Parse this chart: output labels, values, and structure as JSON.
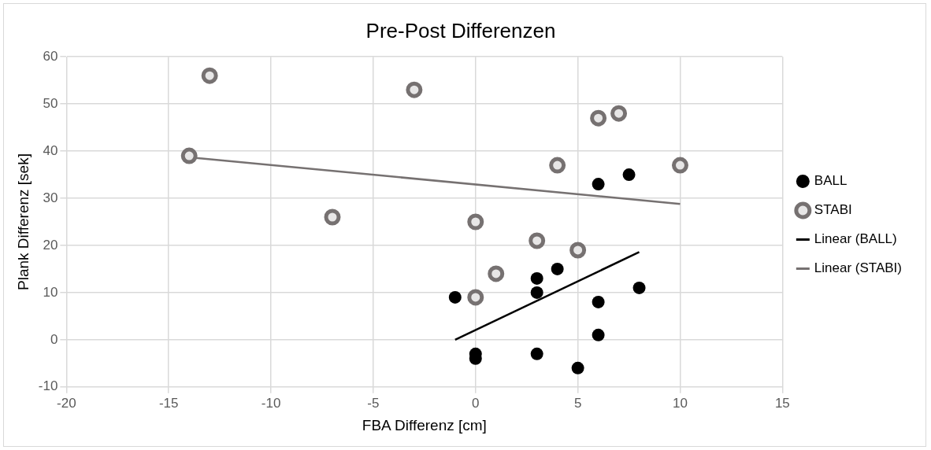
{
  "chart_data": {
    "type": "scatter",
    "title": "Pre-Post Differenzen",
    "xlabel": "FBA Differenz [cm]",
    "ylabel": "Plank Differenz [sek]",
    "xlim": [
      -20,
      15
    ],
    "xticks": [
      -20,
      -15,
      -10,
      -5,
      0,
      5,
      10,
      15
    ],
    "ylim": [
      -10,
      60
    ],
    "yticks": [
      -10,
      0,
      10,
      20,
      30,
      40,
      50,
      60
    ],
    "grid": true,
    "legend": "right",
    "marker": "circle",
    "series": [
      {
        "name": "BALL",
        "color": "#000000",
        "x": [
          -1,
          0,
          0,
          3,
          3,
          3,
          4,
          5,
          6,
          6,
          6,
          7.5,
          8
        ],
        "values": [
          9,
          -3,
          -4,
          13,
          10,
          -3,
          15,
          -6,
          8,
          1,
          33,
          35,
          11
        ]
      },
      {
        "name": "STABI",
        "color": "#767171",
        "x": [
          -13,
          -3,
          -14,
          -7,
          6,
          7,
          4,
          10,
          0,
          3,
          5,
          1,
          0
        ],
        "values": [
          56,
          53,
          39,
          26,
          47,
          48,
          37,
          37,
          25,
          21,
          19,
          14,
          9
        ]
      },
      {
        "name": "Linear (BALL)",
        "type": "line",
        "color": "#000000",
        "marker": "none",
        "x": [
          -1,
          8
        ],
        "values": [
          0,
          18.6
        ]
      },
      {
        "name": "Linear (STABI)",
        "type": "line",
        "color": "#767171",
        "marker": "none",
        "x": [
          -14,
          10
        ],
        "values": [
          38.7,
          28.8
        ]
      }
    ]
  }
}
